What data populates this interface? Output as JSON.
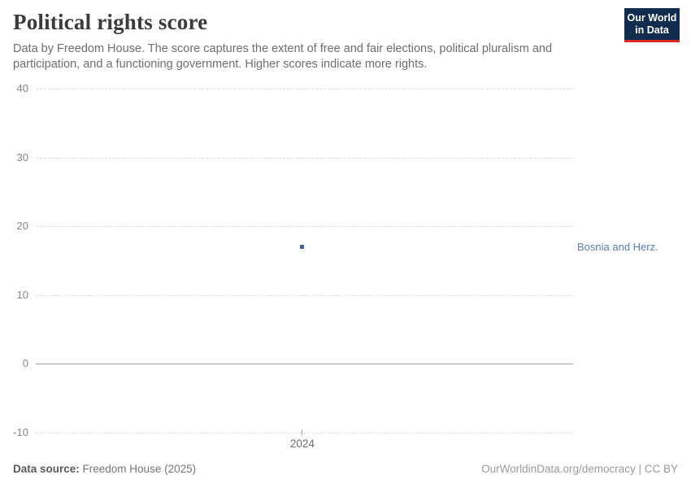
{
  "header": {
    "title": "Political rights score",
    "subtitle": "Data by Freedom House. The score captures the extent of free and fair elections, political pluralism and participation, and a functioning government. Higher scores indicate more rights.",
    "logo": {
      "line1": "Our World",
      "line2": "in Data",
      "bg_color": "#102d50",
      "accent_color": "#dc2a27"
    }
  },
  "chart_data": {
    "type": "scatter",
    "title": "Political rights score",
    "x": [
      2024
    ],
    "series": [
      {
        "name": "Bosnia and Herz.",
        "values": [
          17
        ],
        "color": "#3c5fa0",
        "label_color": "#5b7ab8"
      }
    ],
    "xlabel": "",
    "ylabel": "",
    "ylim": [
      -10,
      40
    ],
    "yticks": [
      40,
      30,
      20,
      10,
      0,
      -10
    ],
    "xticks": [
      "2024"
    ],
    "grid": true,
    "grid_style": "dashed horizontal lines, solid line at zero",
    "legend_position": "entity label at right of plot"
  },
  "footer": {
    "source_label": "Data source:",
    "source_value": " Freedom House (2025)",
    "right_text": "OurWorldinData.org/democracy | CC BY"
  }
}
